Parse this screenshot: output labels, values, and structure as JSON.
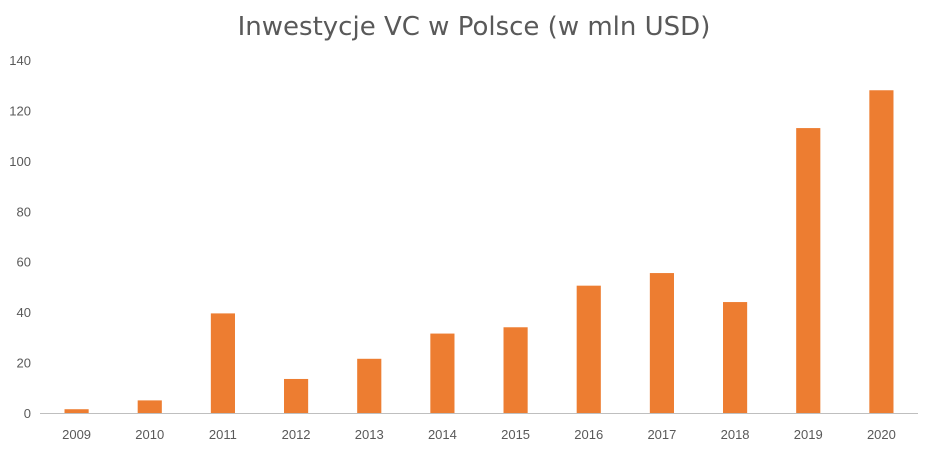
{
  "chart_data": {
    "type": "bar",
    "title": "Inwestycje VC w Polsce (w mln USD)",
    "xlabel": "",
    "ylabel": "",
    "categories": [
      "2009",
      "2010",
      "2011",
      "2012",
      "2013",
      "2014",
      "2015",
      "2016",
      "2017",
      "2018",
      "2019",
      "2020"
    ],
    "values": [
      1.5,
      5,
      39.5,
      13.5,
      21.5,
      31.5,
      34,
      50.5,
      55.5,
      44,
      113,
      128
    ],
    "ylim": [
      0,
      140
    ],
    "yticks": [
      "0",
      "20",
      "40",
      "60",
      "80",
      "100",
      "120",
      "140"
    ],
    "grid": false,
    "legend": "none",
    "bar_color": "#ED7D31",
    "axis_color": "#BFBFBF",
    "text_color": "#595959"
  }
}
